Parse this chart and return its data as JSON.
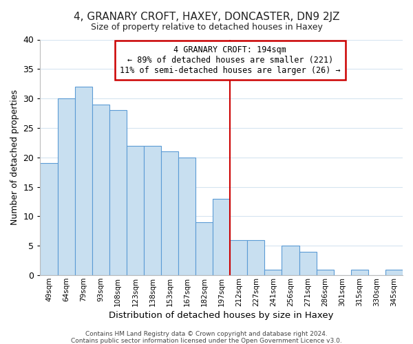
{
  "title": "4, GRANARY CROFT, HAXEY, DONCASTER, DN9 2JZ",
  "subtitle": "Size of property relative to detached houses in Haxey",
  "xlabel": "Distribution of detached houses by size in Haxey",
  "ylabel": "Number of detached properties",
  "bar_labels": [
    "49sqm",
    "64sqm",
    "79sqm",
    "93sqm",
    "108sqm",
    "123sqm",
    "138sqm",
    "153sqm",
    "167sqm",
    "182sqm",
    "197sqm",
    "212sqm",
    "227sqm",
    "241sqm",
    "256sqm",
    "271sqm",
    "286sqm",
    "301sqm",
    "315sqm",
    "330sqm",
    "345sqm"
  ],
  "bar_values": [
    19,
    30,
    32,
    29,
    28,
    22,
    22,
    21,
    20,
    9,
    13,
    6,
    6,
    1,
    5,
    4,
    1,
    0,
    1,
    0,
    1
  ],
  "bar_color": "#c8dff0",
  "bar_edge_color": "#5b9bd5",
  "highlight_bar_index": 10,
  "highlight_line_color": "#cc0000",
  "ylim": [
    0,
    40
  ],
  "yticks": [
    0,
    5,
    10,
    15,
    20,
    25,
    30,
    35,
    40
  ],
  "annotation_title": "4 GRANARY CROFT: 194sqm",
  "annotation_line1": "← 89% of detached houses are smaller (221)",
  "annotation_line2": "11% of semi-detached houses are larger (26) →",
  "annotation_box_color": "#ffffff",
  "annotation_box_edge_color": "#cc0000",
  "footnote1": "Contains HM Land Registry data © Crown copyright and database right 2024.",
  "footnote2": "Contains public sector information licensed under the Open Government Licence v3.0.",
  "background_color": "#ffffff",
  "grid_color": "#d5e4f0"
}
